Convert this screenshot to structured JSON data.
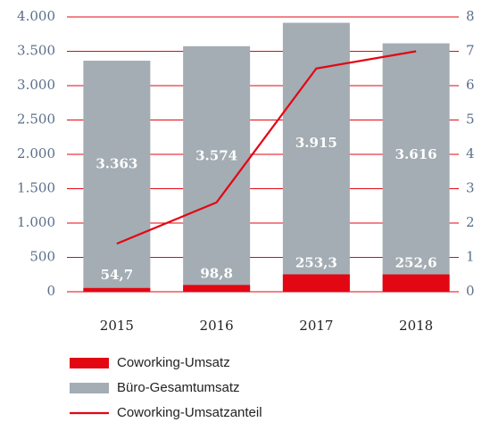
{
  "chart_data": {
    "type": "bar",
    "categories": [
      "2015",
      "2016",
      "2017",
      "2018"
    ],
    "series": [
      {
        "name": "Büro-Gesamtumsatz",
        "color": "#a3adb3",
        "values": [
          3363,
          3574,
          3915,
          3616
        ],
        "value_labels": [
          "3.363",
          "3.574",
          "3.915",
          "3.616"
        ]
      },
      {
        "name": "Coworking-Umsatz",
        "color": "#e30613",
        "values": [
          54.7,
          98.8,
          253.3,
          252.6
        ],
        "value_labels": [
          "54,7",
          "98,8",
          "253,3",
          "252,6"
        ]
      },
      {
        "name": "Coworking-Umsatzanteil",
        "color": "#e30613",
        "type": "line",
        "axis": "y2",
        "values": [
          1.4,
          2.6,
          6.5,
          7.0
        ]
      }
    ],
    "legend_order": [
      1,
      0,
      2
    ],
    "ylim": [
      0,
      4000
    ],
    "yticks": [
      0,
      500,
      {
        "value": 1000,
        "label": "1.000"
      },
      {
        "value": 1500,
        "label": "1.500"
      },
      {
        "value": 2000,
        "label": "2.000"
      },
      {
        "value": 2500,
        "label": "2.500"
      },
      {
        "value": 3000,
        "label": "3.000"
      },
      {
        "value": 3500,
        "label": "3.500"
      },
      {
        "value": 4000,
        "label": "4.000"
      }
    ],
    "y2lim": [
      0,
      8
    ],
    "y2ticks": [
      0,
      1,
      2,
      3,
      4,
      5,
      6,
      7,
      8
    ],
    "grid": true
  }
}
